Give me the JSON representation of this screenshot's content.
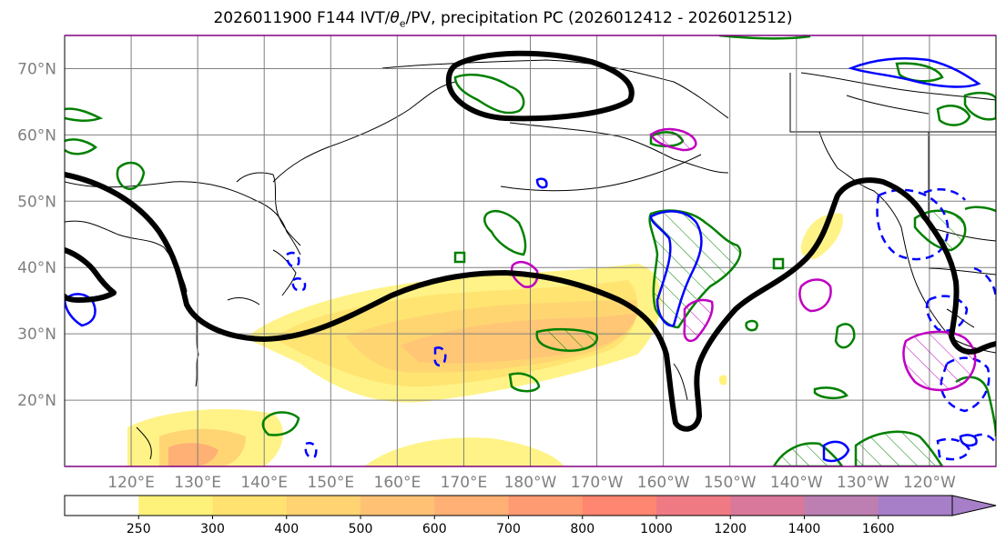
{
  "title": {
    "prefix": "2026011900 F144 IVT/",
    "theta": "θ",
    "theta_sub": "e",
    "suffix": "/PV, precipitation PC (2026012412 - 2026012512)"
  },
  "axes": {
    "lat_labels": [
      "70°N",
      "60°N",
      "50°N",
      "40°N",
      "30°N",
      "20°N"
    ],
    "lat_values": [
      70,
      60,
      50,
      40,
      30,
      20
    ],
    "lon_labels": [
      "120°E",
      "130°E",
      "140°E",
      "150°E",
      "160°E",
      "170°E",
      "180°W",
      "170°W",
      "160°W",
      "150°W",
      "140°W",
      "130°W",
      "120°W"
    ],
    "lon_values": [
      120,
      130,
      140,
      150,
      160,
      170,
      180,
      190,
      200,
      210,
      220,
      230,
      240
    ],
    "lat_range": [
      10,
      75
    ],
    "lon_range": [
      110,
      250
    ],
    "grid": true
  },
  "colorbar": {
    "ticks": [
      "250",
      "300",
      "400",
      "500",
      "600",
      "700",
      "800",
      "1000",
      "1200",
      "1400",
      "1600"
    ],
    "colors": [
      "#ffffff",
      "#fff27a",
      "#ffe270",
      "#ffd272",
      "#ffc275",
      "#ffb074",
      "#ff9b72",
      "#ff8670",
      "#f07a84",
      "#d9789a",
      "#bd7fb2",
      "#a77fc8"
    ],
    "extend": "max"
  },
  "legend_colors": {
    "coast": "#000000",
    "pv_contour": "#000000",
    "theta_e": "#008000",
    "precip_pos": "#0000ff",
    "precip_neg": "#c000c0",
    "ivt_low": "#fff27a",
    "ivt_mid": "#ffc275"
  }
}
